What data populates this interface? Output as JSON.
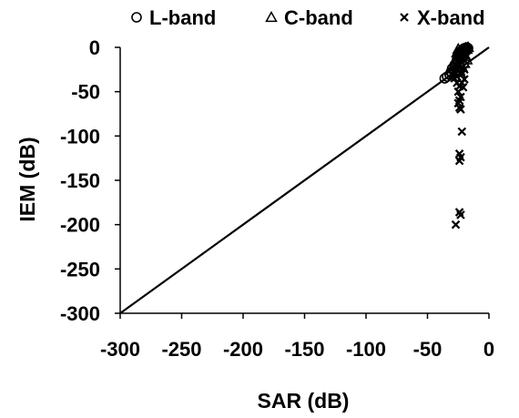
{
  "chart_data": {
    "type": "scatter",
    "title": "",
    "xlabel": "SAR (dB)",
    "ylabel": "IEM (dB)",
    "xlim": [
      -300,
      0
    ],
    "ylim": [
      -300,
      0
    ],
    "x_ticks": [
      -300,
      -250,
      -200,
      -150,
      -100,
      -50,
      0
    ],
    "y_ticks": [
      0,
      -50,
      -100,
      -150,
      -200,
      -250,
      -300
    ],
    "x_tick_labels": [
      "-300",
      "-250",
      "-200",
      "-150",
      "-100",
      "-50",
      "0"
    ],
    "y_tick_labels": [
      "0",
      "-50",
      "-100",
      "-150",
      "-200",
      "-250",
      "-300"
    ],
    "grid": false,
    "legend_position": "top",
    "reference_line": {
      "from": [
        -300,
        -300
      ],
      "to": [
        0,
        0
      ]
    },
    "series": [
      {
        "name": "L-band",
        "marker": "circle",
        "points": [
          [
            -36,
            -35
          ],
          [
            -34,
            -33
          ],
          [
            -32,
            -31
          ],
          [
            -30,
            -30
          ],
          [
            -29,
            -26
          ],
          [
            -28,
            -22
          ],
          [
            -27,
            -18
          ],
          [
            -26,
            -14
          ],
          [
            -25,
            -10
          ],
          [
            -24,
            -7
          ],
          [
            -23,
            -5
          ],
          [
            -22,
            -3
          ],
          [
            -21,
            -2
          ],
          [
            -20,
            -1
          ],
          [
            -19,
            -1
          ],
          [
            -18,
            0
          ],
          [
            -17,
            -1
          ],
          [
            -20,
            -4
          ],
          [
            -22,
            -8
          ],
          [
            -24,
            -12
          ],
          [
            -26,
            -16
          ],
          [
            -28,
            -20
          ],
          [
            -30,
            -24
          ],
          [
            -31,
            -28
          ]
        ]
      },
      {
        "name": "C-band",
        "marker": "triangle",
        "points": [
          [
            -27,
            -28
          ],
          [
            -26,
            -24
          ],
          [
            -25,
            -20
          ],
          [
            -24,
            -16
          ],
          [
            -23,
            -12
          ],
          [
            -22,
            -9
          ],
          [
            -21,
            -6
          ],
          [
            -20,
            -3
          ],
          [
            -19,
            -1
          ],
          [
            -18,
            -2
          ],
          [
            -17,
            0
          ],
          [
            -24,
            -26
          ],
          [
            -22,
            -22
          ],
          [
            -20,
            -18
          ],
          [
            -18,
            -14
          ],
          [
            -19,
            -10
          ],
          [
            -21,
            -8
          ],
          [
            -23,
            -4
          ],
          [
            -25,
            -2
          ],
          [
            -26,
            -6
          ]
        ]
      },
      {
        "name": "X-band",
        "marker": "x",
        "points": [
          [
            -30,
            -30
          ],
          [
            -28,
            -35
          ],
          [
            -26,
            -40
          ],
          [
            -24,
            -44
          ],
          [
            -22,
            -40
          ],
          [
            -20,
            -36
          ],
          [
            -25,
            -50
          ],
          [
            -23,
            -56
          ],
          [
            -24,
            -60
          ],
          [
            -25,
            -63
          ],
          [
            -24,
            -68
          ],
          [
            -23,
            -70
          ],
          [
            -22,
            -95
          ],
          [
            -24,
            -120
          ],
          [
            -23,
            -124
          ],
          [
            -24,
            -128
          ],
          [
            -24,
            -186
          ],
          [
            -23,
            -189
          ],
          [
            -27,
            -200
          ],
          [
            -26,
            -20
          ],
          [
            -25,
            -15
          ],
          [
            -22,
            -12
          ],
          [
            -21,
            -8
          ],
          [
            -19,
            -5
          ],
          [
            -18,
            -2
          ],
          [
            -20,
            -25
          ],
          [
            -22,
            -30
          ],
          [
            -21,
            -45
          ],
          [
            -26,
            -33
          ]
        ]
      }
    ]
  }
}
